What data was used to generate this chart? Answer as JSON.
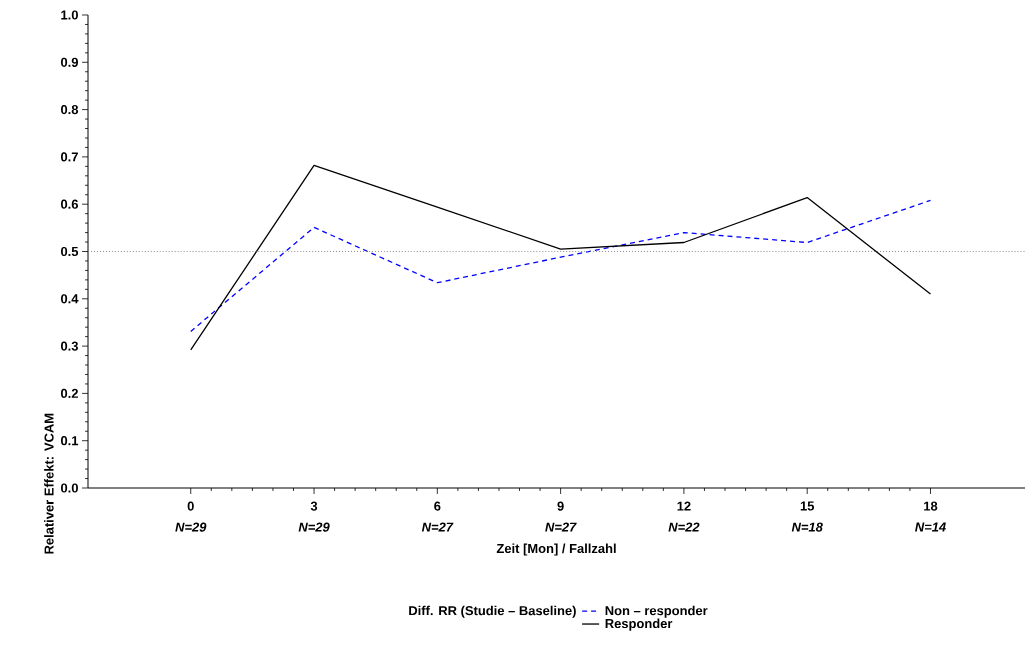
{
  "chart_data": {
    "type": "line",
    "xlabel": "Zeit [Mon] / Fallzahl",
    "ylabel": "Relativer Effekt: VCAM",
    "legend_title": "Diff. RR (Studie – Baseline)",
    "x": [
      0,
      3,
      6,
      9,
      12,
      15,
      18
    ],
    "xlim": [
      -2.5,
      20.3
    ],
    "xticks": [
      0,
      3,
      6,
      9,
      12,
      15,
      18
    ],
    "ylim": [
      0,
      1.0
    ],
    "yticks": [
      {
        "value": 0,
        "label": "0.0"
      },
      0.1,
      0.2,
      0.3,
      0.4,
      0.5,
      0.6,
      0.7,
      0.8,
      0.9,
      {
        "value": 1.0,
        "label": "1.0"
      }
    ],
    "series": [
      {
        "name": "Non – responder",
        "color": "#0000ff",
        "line_style": "dashed",
        "values": [
          0.331,
          0.551,
          0.434,
          0.488,
          0.54,
          0.519,
          0.608
        ]
      },
      {
        "name": "Responder",
        "color": "#000000",
        "line_style": "solid",
        "values": [
          0.292,
          0.682,
          0.594,
          0.505,
          0.519,
          0.614,
          0.41
        ]
      }
    ],
    "ref_lines": [
      {
        "axis": "y",
        "value": 0.5,
        "color": "#808080",
        "line_style": "dotted"
      }
    ],
    "annotations": [
      "N=29",
      "N=29",
      "N=27",
      "N=27",
      "N=22",
      "N=18",
      "N=14"
    ],
    "marker": "none",
    "legend": "bottom",
    "grid": false
  }
}
